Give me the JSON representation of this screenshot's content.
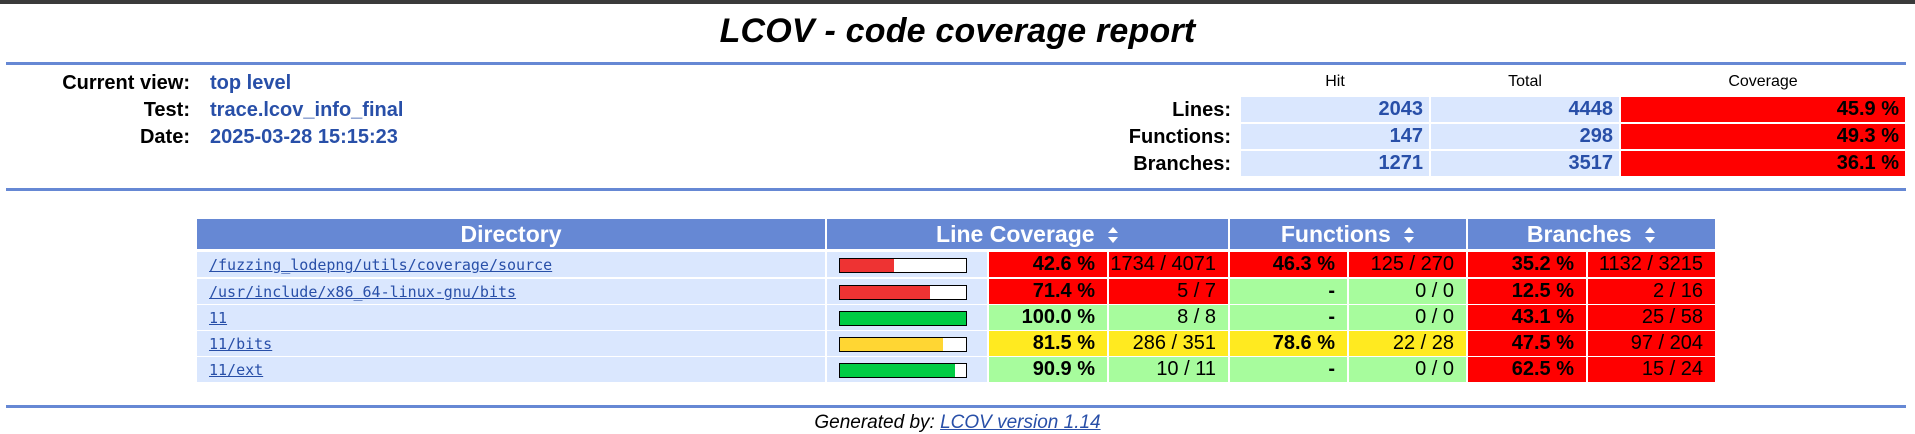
{
  "header": {
    "title": "LCOV - code coverage report"
  },
  "info": {
    "current_view_label": "Current view:",
    "current_view_value": "top level",
    "test_label": "Test:",
    "test_value": "trace.lcov_info_final",
    "date_label": "Date:",
    "date_value": "2025-03-28 15:15:23"
  },
  "summary": {
    "columns": [
      "Hit",
      "Total",
      "Coverage"
    ],
    "rows": [
      {
        "label": "Lines:",
        "hit": "2043",
        "total": "4448",
        "coverage": "45.9 %"
      },
      {
        "label": "Functions:",
        "hit": "147",
        "total": "298",
        "coverage": "49.3 %"
      },
      {
        "label": "Branches:",
        "hit": "1271",
        "total": "3517",
        "coverage": "36.1 %"
      }
    ]
  },
  "table": {
    "headers": {
      "directory": "Directory",
      "line_coverage": "Line Coverage",
      "functions": "Functions",
      "branches": "Branches"
    },
    "rows": [
      {
        "dir": "/fuzzing_lodepng/utils/coverage/source",
        "line_pct": "42.6 %",
        "line_frac": 0.426,
        "line_cnt": "1734 / 4071",
        "fn_pct": "46.3 %",
        "fn_cnt": "125 / 270",
        "br_pct": "35.2 %",
        "br_cnt": "1132 / 3215"
      },
      {
        "dir": "/usr/include/x86_64-linux-gnu/bits",
        "line_pct": "71.4 %",
        "line_frac": 0.714,
        "line_cnt": "5 / 7",
        "fn_pct": "-",
        "fn_cnt": "0 / 0",
        "br_pct": "12.5 %",
        "br_cnt": "2 / 16"
      },
      {
        "dir": "11",
        "line_pct": "100.0 %",
        "line_frac": 1.0,
        "line_cnt": "8 / 8",
        "fn_pct": "-",
        "fn_cnt": "0 / 0",
        "br_pct": "43.1 %",
        "br_cnt": "25 / 58"
      },
      {
        "dir": "11/bits",
        "line_pct": "81.5 %",
        "line_frac": 0.815,
        "line_cnt": "286 / 351",
        "fn_pct": "78.6 %",
        "fn_cnt": "22 / 28",
        "br_pct": "47.5 %",
        "br_cnt": "97 / 204"
      },
      {
        "dir": "11/ext",
        "line_pct": "90.9 %",
        "line_frac": 0.909,
        "line_cnt": "10 / 11",
        "fn_pct": "-",
        "fn_cnt": "0 / 0",
        "br_pct": "62.5 %",
        "br_cnt": "15 / 24"
      }
    ],
    "row_colors": [
      {
        "line": "#ff0000",
        "fn": "#ff0000",
        "br": "#ff0000",
        "bar": "#ee3333"
      },
      {
        "line": "#ff0000",
        "fn": "#a7fc9d",
        "br": "#ff0000",
        "bar": "#ee3333"
      },
      {
        "line": "#a7fc9d",
        "fn": "#a7fc9d",
        "br": "#ff0000",
        "bar": "#00cc44"
      },
      {
        "line": "#ffea20",
        "fn": "#ffea20",
        "br": "#ff0000",
        "bar": "#ffd633"
      },
      {
        "line": "#a7fc9d",
        "fn": "#a7fc9d",
        "br": "#ff0000",
        "bar": "#00cc44"
      }
    ]
  },
  "footer": {
    "generated_by": "Generated by:",
    "tool_link": "LCOV version 1.14"
  }
}
